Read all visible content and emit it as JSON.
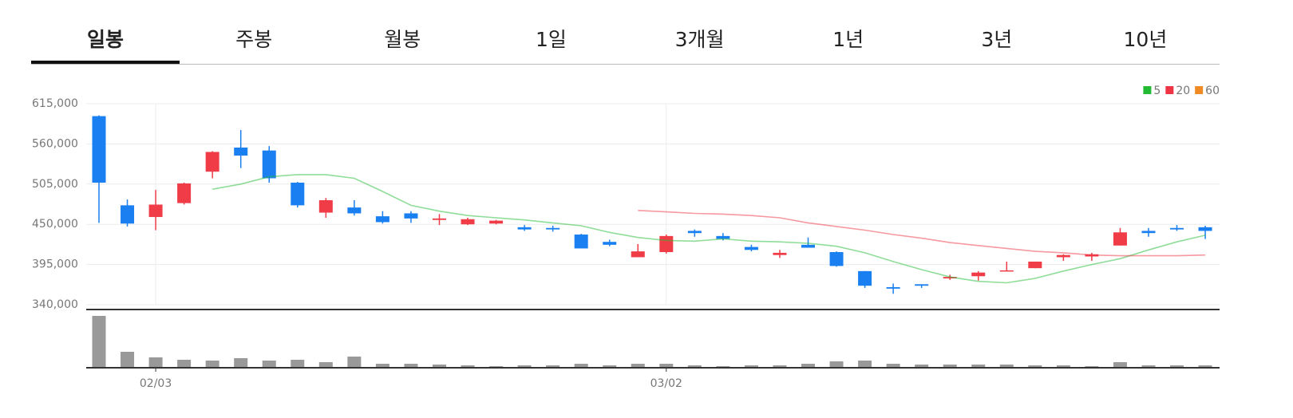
{
  "tabs": [
    "일봉",
    "주봉",
    "월봉",
    "1일",
    "3개월",
    "1년",
    "3년",
    "10년"
  ],
  "selected_tab": 0,
  "chart_data": {
    "type": "candlestick",
    "categories": [
      null,
      null,
      "02/03",
      null,
      null,
      null,
      null,
      null,
      null,
      null,
      null,
      null,
      null,
      null,
      null,
      null,
      null,
      null,
      null,
      null,
      "03/02",
      null,
      null,
      null,
      null,
      null,
      null,
      null,
      null,
      null,
      null,
      null,
      null,
      null,
      null,
      null,
      null,
      null,
      null,
      null
    ],
    "open": [
      598000,
      476000,
      460000,
      479000,
      522000,
      555000,
      551000,
      507000,
      466000,
      473000,
      461000,
      465000,
      456000,
      450000,
      451000,
      446000,
      445000,
      436000,
      426000,
      405000,
      412000,
      441000,
      434000,
      419000,
      408000,
      422000,
      412000,
      386000,
      364000,
      368000,
      376000,
      379000,
      386000,
      390000,
      405000,
      406000,
      421000,
      441000,
      445000,
      446000
    ],
    "high": [
      599000,
      484000,
      497000,
      507000,
      550000,
      579000,
      557000,
      508000,
      486000,
      483000,
      468000,
      468000,
      464000,
      459000,
      456000,
      449000,
      448000,
      437000,
      429000,
      423000,
      436000,
      443000,
      438000,
      422000,
      415000,
      432000,
      413000,
      386000,
      369000,
      368000,
      381000,
      386000,
      399000,
      399000,
      409000,
      411000,
      445000,
      445000,
      449000,
      448000
    ],
    "low": [
      452000,
      447000,
      442000,
      477000,
      513000,
      527000,
      507000,
      473000,
      459000,
      462000,
      451000,
      452000,
      449000,
      449000,
      450000,
      441000,
      440000,
      417000,
      420000,
      405000,
      410000,
      433000,
      428000,
      413000,
      404000,
      418000,
      392000,
      363000,
      355000,
      363000,
      374000,
      373000,
      386000,
      390000,
      400000,
      400000,
      421000,
      433000,
      441000,
      430000
    ],
    "close": [
      507000,
      451000,
      477000,
      506000,
      549000,
      544000,
      513000,
      476000,
      483000,
      465000,
      453000,
      458000,
      458000,
      457000,
      455000,
      443000,
      443000,
      417000,
      422000,
      413000,
      434000,
      438000,
      430000,
      415000,
      411000,
      418000,
      393000,
      366000,
      362000,
      366000,
      378000,
      384000,
      387000,
      399000,
      408000,
      409000,
      439000,
      438000,
      443000,
      441000
    ],
    "up_color": "#f03c47",
    "down_color": "#1a7ff0",
    "ylim": [
      340000,
      615000
    ],
    "yticks": [
      {
        "value": 615000,
        "label": "615,000"
      },
      {
        "value": 560000,
        "label": "560,000"
      },
      {
        "value": 505000,
        "label": "505,000"
      },
      {
        "value": 450000,
        "label": "450,000"
      },
      {
        "value": 395000,
        "label": "395,000"
      },
      {
        "value": 340000,
        "label": "340,000"
      }
    ],
    "grid": true,
    "legend": "top-right",
    "series": [
      {
        "name": "5",
        "color": "#22bb33",
        "values": [
          null,
          null,
          null,
          null,
          498000,
          505000,
          515000,
          518000,
          518000,
          513000,
          495000,
          476000,
          468000,
          462000,
          459000,
          456000,
          452000,
          448000,
          439000,
          432000,
          428000,
          427000,
          430000,
          427000,
          426000,
          424000,
          420000,
          411000,
          399000,
          388000,
          378000,
          372000,
          370000,
          376000,
          386000,
          395000,
          403000,
          415000,
          426000,
          435000
        ]
      },
      {
        "name": "20",
        "color": "#ee3344",
        "values": [
          null,
          null,
          null,
          null,
          null,
          null,
          null,
          null,
          null,
          null,
          null,
          null,
          null,
          null,
          null,
          null,
          null,
          null,
          null,
          469000,
          467000,
          465000,
          464000,
          462000,
          459000,
          452000,
          447000,
          442000,
          436000,
          431000,
          425000,
          421000,
          417000,
          413000,
          411000,
          408000,
          407000,
          407000,
          407000,
          408000
        ]
      },
      {
        "name": "60",
        "color": "#f08a24",
        "values": [
          null,
          null,
          null,
          null,
          null,
          null,
          null,
          null,
          null,
          null,
          null,
          null,
          null,
          null,
          null,
          null,
          null,
          null,
          null,
          null,
          null,
          null,
          null,
          null,
          null,
          null,
          null,
          null,
          null,
          null,
          null,
          null,
          null,
          null,
          null,
          null,
          null,
          null,
          null,
          null
        ]
      }
    ],
    "volume": {
      "color": "#999999",
      "values": [
        64,
        19,
        12,
        9,
        8,
        11,
        8,
        9,
        6,
        13,
        4,
        4,
        3,
        2,
        1,
        2,
        2,
        4,
        2,
        4,
        4,
        2,
        1,
        2,
        2,
        4,
        7,
        8,
        4,
        3,
        3,
        3,
        3,
        2,
        2,
        1,
        6,
        2,
        2,
        2
      ]
    }
  }
}
